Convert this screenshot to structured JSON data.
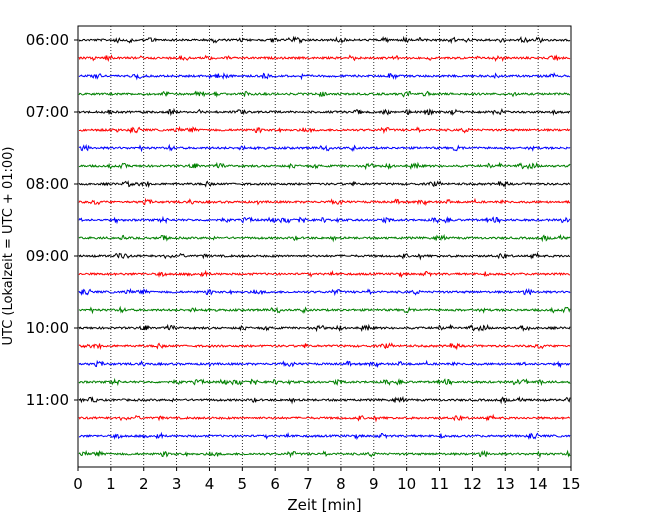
{
  "chart_data": {
    "type": "line",
    "title": "",
    "xlabel": "Zeit  [min]",
    "ylabel": "UTC (Lokalzeit = UTC + 01:00)",
    "xlim": [
      0,
      15
    ],
    "x_ticks": [
      "0",
      "1",
      "2",
      "3",
      "4",
      "5",
      "6",
      "7",
      "8",
      "9",
      "10",
      "11",
      "12",
      "13",
      "14",
      "15"
    ],
    "y_ticks": [
      "06:00",
      "07:00",
      "08:00",
      "09:00",
      "10:00",
      "11:00"
    ],
    "row_interval_min": 15,
    "start_time": "06:00",
    "end_time": "11:45",
    "grid_x": true,
    "grid_y": false,
    "trace_color_cycle": [
      "#000000",
      "#ff0000",
      "#0000ff",
      "#008000"
    ],
    "traces": [
      {
        "start": "06:00",
        "color": "#000000"
      },
      {
        "start": "06:15",
        "color": "#ff0000"
      },
      {
        "start": "06:30",
        "color": "#0000ff"
      },
      {
        "start": "06:45",
        "color": "#008000"
      },
      {
        "start": "07:00",
        "color": "#000000"
      },
      {
        "start": "07:15",
        "color": "#ff0000"
      },
      {
        "start": "07:30",
        "color": "#0000ff"
      },
      {
        "start": "07:45",
        "color": "#008000"
      },
      {
        "start": "08:00",
        "color": "#000000"
      },
      {
        "start": "08:15",
        "color": "#ff0000"
      },
      {
        "start": "08:30",
        "color": "#0000ff"
      },
      {
        "start": "08:45",
        "color": "#008000"
      },
      {
        "start": "09:00",
        "color": "#000000"
      },
      {
        "start": "09:15",
        "color": "#ff0000"
      },
      {
        "start": "09:30",
        "color": "#0000ff"
      },
      {
        "start": "09:45",
        "color": "#008000"
      },
      {
        "start": "10:00",
        "color": "#000000"
      },
      {
        "start": "10:15",
        "color": "#ff0000"
      },
      {
        "start": "10:30",
        "color": "#0000ff"
      },
      {
        "start": "10:45",
        "color": "#008000"
      },
      {
        "start": "11:00",
        "color": "#000000"
      },
      {
        "start": "11:15",
        "color": "#ff0000"
      },
      {
        "start": "11:30",
        "color": "#0000ff"
      },
      {
        "start": "11:45",
        "color": "#008000"
      }
    ]
  }
}
